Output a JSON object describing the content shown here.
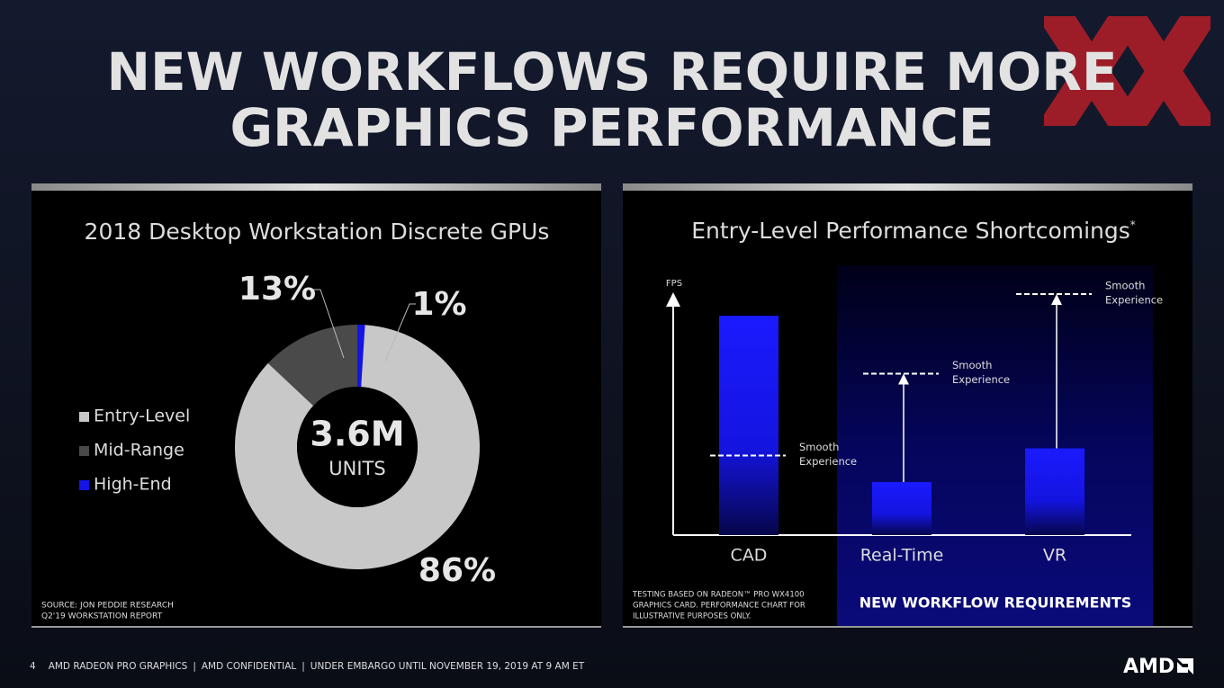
{
  "title": [
    "NEW WORKFLOWS REQUIRE MORE",
    "GRAPHICS PERFORMANCE"
  ],
  "chart_data": [
    {
      "type": "pie",
      "title": "2018 Desktop Workstation Discrete GPUs",
      "categories": [
        "Entry-Level",
        "Mid-Range",
        "High-End"
      ],
      "values": [
        86,
        13,
        1
      ],
      "value_labels": [
        "86%",
        "13%",
        "1%"
      ],
      "colors": [
        "#c8c8c8",
        "#4a4a4a",
        "#1414e6"
      ],
      "center_value": "3.6M",
      "center_label": "UNITS",
      "source": [
        "SOURCE: JON PEDDIE RESEARCH",
        "Q2'19 WORKSTATION REPORT"
      ]
    },
    {
      "type": "bar",
      "title": "Entry-Level Performance Shortcomings",
      "title_note": "*",
      "y_label": "FPS",
      "categories": [
        "CAD",
        "Real-Time",
        "VR"
      ],
      "values": [
        91,
        22,
        36
      ],
      "targets": [
        33,
        67,
        100
      ],
      "target_label": [
        "Smooth",
        "Experience"
      ],
      "ylim": [
        0,
        100
      ],
      "color": "#1a1aff",
      "region_label": "NEW WORKFLOW REQUIREMENTS",
      "footnote": [
        "TESTING BASED ON RADEON™ PRO WX4100",
        "GRAPHICS CARD. PERFORMANCE CHART FOR",
        "ILLUSTRATIVE PURPOSES ONLY."
      ]
    }
  ],
  "footer": {
    "page": "4",
    "separator": "|",
    "items": [
      "AMD RADEON PRO GRAPHICS",
      "AMD CONFIDENTIAL",
      "UNDER EMBARGO UNTIL NOVEMBER 19, 2019 AT 9 AM ET"
    ]
  },
  "logo": "AMD"
}
